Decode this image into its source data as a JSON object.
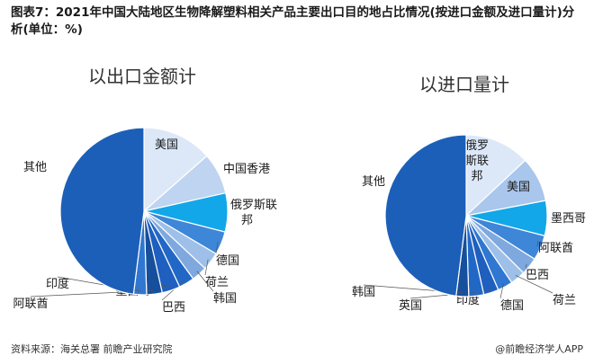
{
  "title": "图表7：2021年中国大陆地区生物降解塑料相关产品主要出口目的地占比情况(按进口金额及进口量计)分析(单位：%)",
  "footer": {
    "source": "资料来源：海关总署 前瞻产业研究院",
    "brand": "@前瞻经济学人APP"
  },
  "chart_data": [
    {
      "type": "pie",
      "title": "以出口金额计",
      "slices": [
        {
          "label": "美国",
          "value": 13.5,
          "color": "#dce8f8"
        },
        {
          "label": "中国香港",
          "value": 8.0,
          "color": "#bed4f0"
        },
        {
          "label": "俄罗斯联邦",
          "value": 7.5,
          "color": "#12a7e8"
        },
        {
          "label": "德国",
          "value": 4.5,
          "color": "#3d86d8"
        },
        {
          "label": "荷兰",
          "value": 3.5,
          "color": "#9ec0e8"
        },
        {
          "label": "韩国",
          "value": 3.0,
          "color": "#7ea8de"
        },
        {
          "label": "巴西",
          "value": 3.0,
          "color": "#2168c6"
        },
        {
          "label": "墨西哥",
          "value": 3.5,
          "color": "#1f5fbf"
        },
        {
          "label": "阿联酋",
          "value": 3.0,
          "color": "#164f9c"
        },
        {
          "label": "印度",
          "value": 2.5,
          "color": "#2f77d0"
        },
        {
          "label": "其他",
          "value": 48.0,
          "color": "#1c5fb8"
        }
      ]
    },
    {
      "type": "pie",
      "title": "以进口量计",
      "slices": [
        {
          "label": "俄罗斯联邦",
          "value": 13.0,
          "color": "#dce8f8"
        },
        {
          "label": "美国",
          "value": 9.0,
          "color": "#a9c6ec"
        },
        {
          "label": "墨西哥",
          "value": 7.0,
          "color": "#12a7e8"
        },
        {
          "label": "阿联酋",
          "value": 5.0,
          "color": "#3d86d8"
        },
        {
          "label": "巴西",
          "value": 3.5,
          "color": "#7ea8de"
        },
        {
          "label": "荷兰",
          "value": 3.0,
          "color": "#9ec0e8"
        },
        {
          "label": "德国",
          "value": 3.0,
          "color": "#2f77d0"
        },
        {
          "label": "印度",
          "value": 3.0,
          "color": "#1f5fbf"
        },
        {
          "label": "英国",
          "value": 3.0,
          "color": "#2168c6"
        },
        {
          "label": "韩国",
          "value": 2.5,
          "color": "#164f9c"
        },
        {
          "label": "其他",
          "value": 48.0,
          "color": "#1c5fb8"
        }
      ]
    }
  ]
}
